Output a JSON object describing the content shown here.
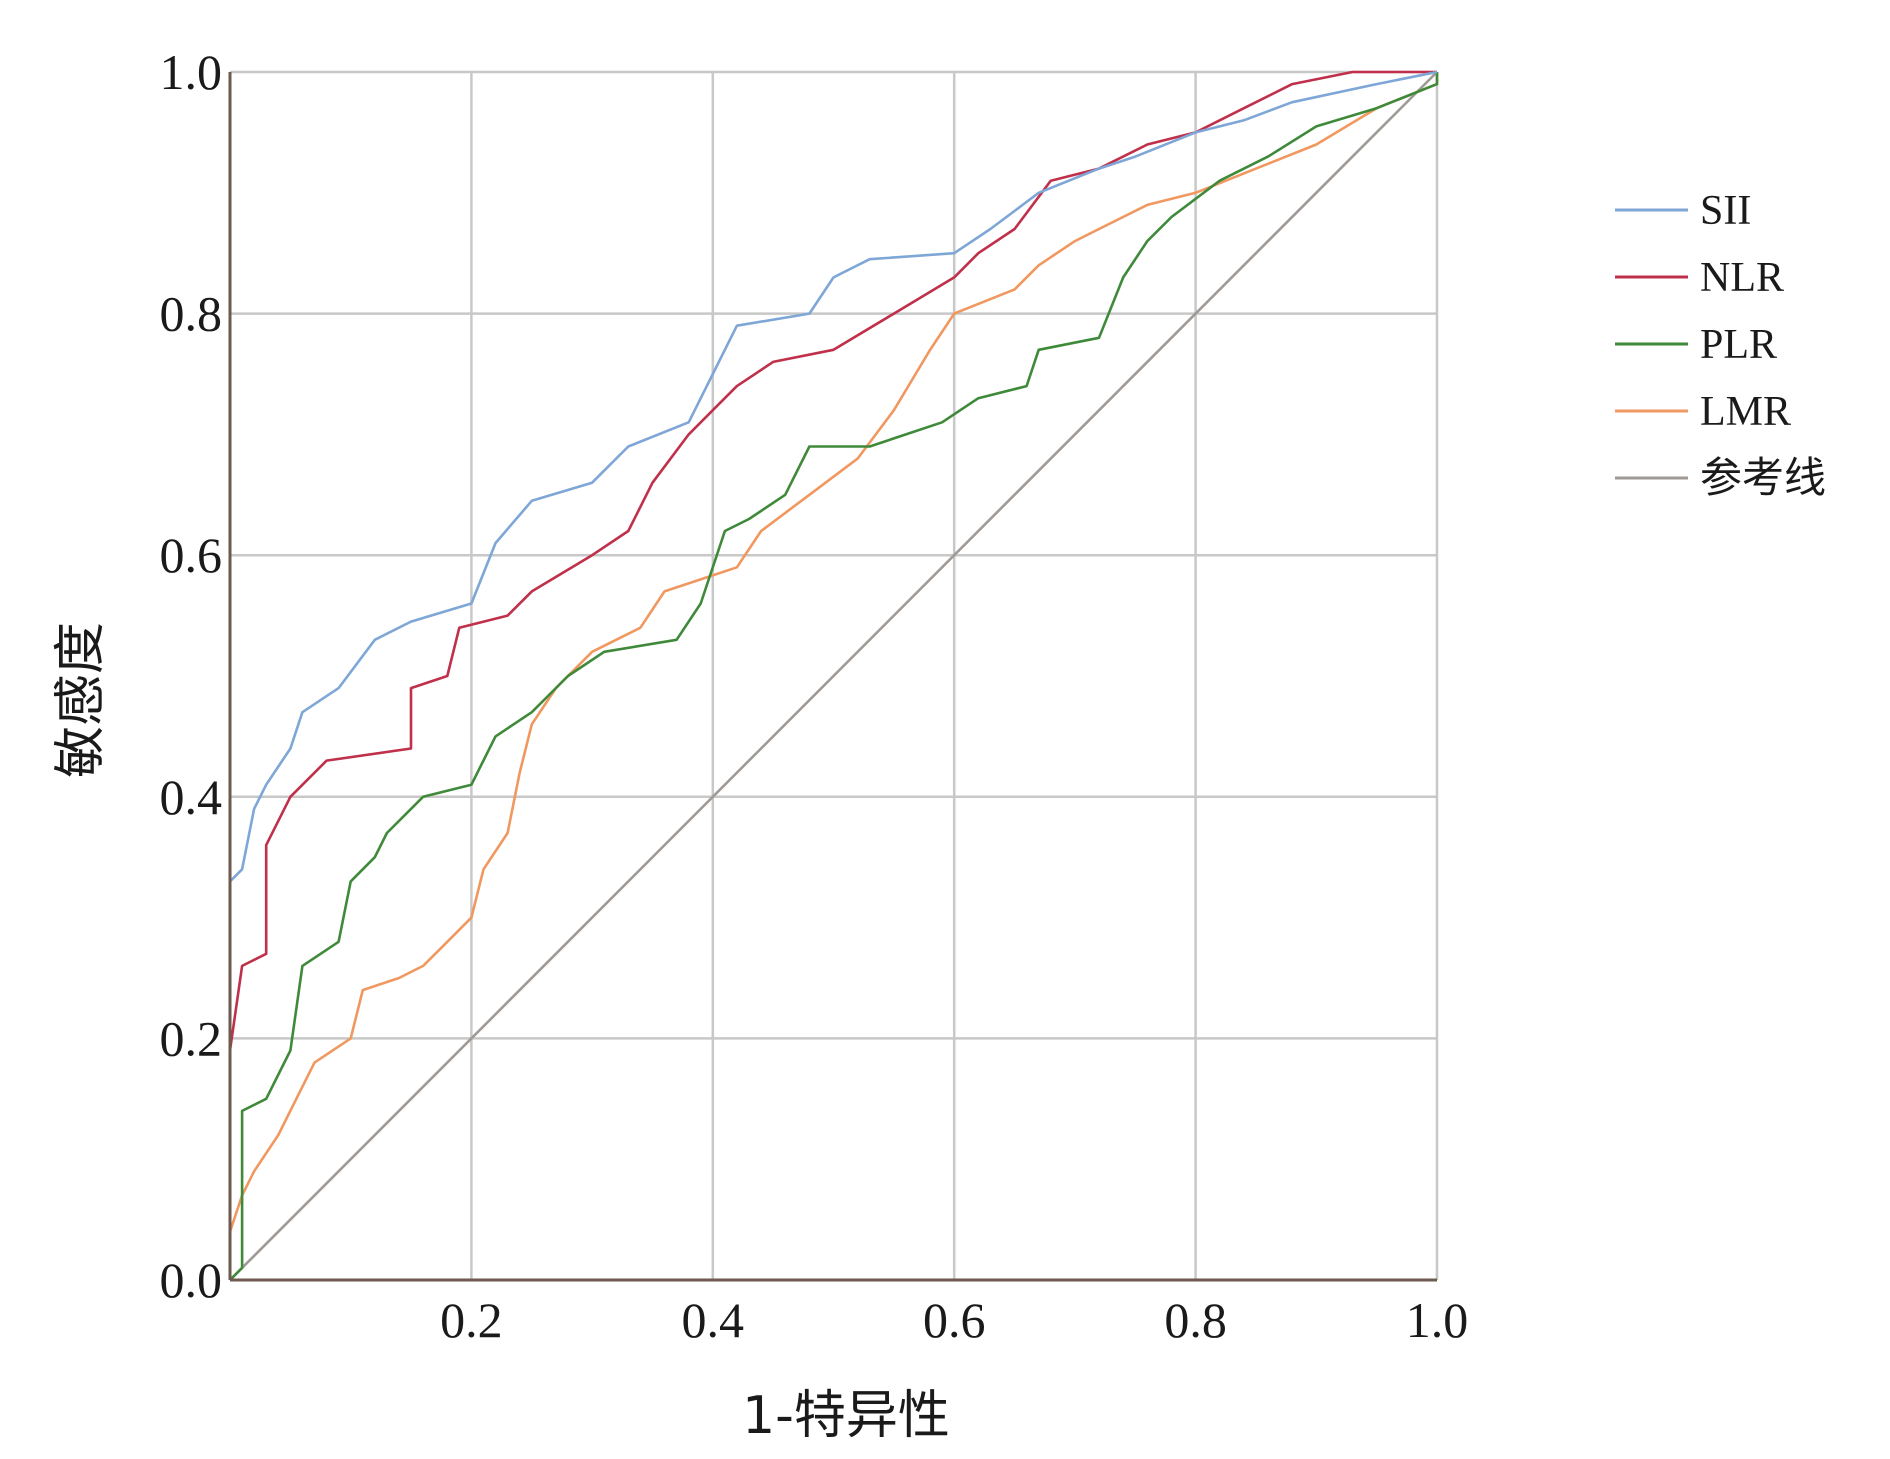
{
  "chart_data": {
    "type": "line",
    "xlabel": "1-特异性",
    "ylabel": "敏感度",
    "xlim": [
      0,
      1
    ],
    "ylim": [
      0,
      1
    ],
    "x_ticks": [
      "0.2",
      "0.4",
      "0.6",
      "0.8",
      "1.0"
    ],
    "y_ticks": [
      "0.0",
      "0.2",
      "0.4",
      "0.6",
      "0.8",
      "1.0"
    ],
    "grid": true,
    "legend_position": "right",
    "series": [
      {
        "name": "SII",
        "color": "#7ea6d6",
        "points": [
          [
            0,
            0
          ],
          [
            0,
            0.33
          ],
          [
            0.01,
            0.34
          ],
          [
            0.02,
            0.39
          ],
          [
            0.03,
            0.41
          ],
          [
            0.05,
            0.44
          ],
          [
            0.06,
            0.47
          ],
          [
            0.09,
            0.49
          ],
          [
            0.12,
            0.53
          ],
          [
            0.15,
            0.545
          ],
          [
            0.2,
            0.56
          ],
          [
            0.22,
            0.61
          ],
          [
            0.25,
            0.645
          ],
          [
            0.3,
            0.66
          ],
          [
            0.33,
            0.69
          ],
          [
            0.38,
            0.71
          ],
          [
            0.4,
            0.75
          ],
          [
            0.42,
            0.79
          ],
          [
            0.48,
            0.8
          ],
          [
            0.5,
            0.83
          ],
          [
            0.53,
            0.845
          ],
          [
            0.6,
            0.85
          ],
          [
            0.63,
            0.87
          ],
          [
            0.67,
            0.9
          ],
          [
            0.72,
            0.92
          ],
          [
            0.75,
            0.93
          ],
          [
            0.8,
            0.95
          ],
          [
            0.84,
            0.96
          ],
          [
            0.88,
            0.975
          ],
          [
            0.95,
            0.99
          ],
          [
            1,
            1
          ]
        ]
      },
      {
        "name": "NLR",
        "color": "#c0304a",
        "points": [
          [
            0,
            0
          ],
          [
            0,
            0.19
          ],
          [
            0.01,
            0.26
          ],
          [
            0.03,
            0.27
          ],
          [
            0.03,
            0.36
          ],
          [
            0.05,
            0.4
          ],
          [
            0.08,
            0.43
          ],
          [
            0.15,
            0.44
          ],
          [
            0.15,
            0.49
          ],
          [
            0.18,
            0.5
          ],
          [
            0.19,
            0.54
          ],
          [
            0.23,
            0.55
          ],
          [
            0.25,
            0.57
          ],
          [
            0.3,
            0.6
          ],
          [
            0.33,
            0.62
          ],
          [
            0.35,
            0.66
          ],
          [
            0.38,
            0.7
          ],
          [
            0.4,
            0.72
          ],
          [
            0.42,
            0.74
          ],
          [
            0.45,
            0.76
          ],
          [
            0.5,
            0.77
          ],
          [
            0.55,
            0.8
          ],
          [
            0.6,
            0.83
          ],
          [
            0.62,
            0.85
          ],
          [
            0.65,
            0.87
          ],
          [
            0.68,
            0.91
          ],
          [
            0.72,
            0.92
          ],
          [
            0.76,
            0.94
          ],
          [
            0.8,
            0.95
          ],
          [
            0.84,
            0.97
          ],
          [
            0.88,
            0.99
          ],
          [
            0.93,
            1
          ],
          [
            1,
            1
          ]
        ]
      },
      {
        "name": "PLR",
        "color": "#3f8a3a",
        "points": [
          [
            0,
            0
          ],
          [
            0.01,
            0.01
          ],
          [
            0.01,
            0.14
          ],
          [
            0.03,
            0.15
          ],
          [
            0.05,
            0.19
          ],
          [
            0.06,
            0.26
          ],
          [
            0.09,
            0.28
          ],
          [
            0.1,
            0.33
          ],
          [
            0.12,
            0.35
          ],
          [
            0.13,
            0.37
          ],
          [
            0.16,
            0.4
          ],
          [
            0.2,
            0.41
          ],
          [
            0.22,
            0.45
          ],
          [
            0.25,
            0.47
          ],
          [
            0.28,
            0.5
          ],
          [
            0.31,
            0.52
          ],
          [
            0.37,
            0.53
          ],
          [
            0.39,
            0.56
          ],
          [
            0.41,
            0.62
          ],
          [
            0.43,
            0.63
          ],
          [
            0.46,
            0.65
          ],
          [
            0.48,
            0.69
          ],
          [
            0.53,
            0.69
          ],
          [
            0.56,
            0.7
          ],
          [
            0.59,
            0.71
          ],
          [
            0.62,
            0.73
          ],
          [
            0.66,
            0.74
          ],
          [
            0.67,
            0.77
          ],
          [
            0.72,
            0.78
          ],
          [
            0.74,
            0.83
          ],
          [
            0.76,
            0.86
          ],
          [
            0.78,
            0.88
          ],
          [
            0.82,
            0.91
          ],
          [
            0.86,
            0.93
          ],
          [
            0.9,
            0.955
          ],
          [
            0.95,
            0.97
          ],
          [
            1,
            0.99
          ],
          [
            1,
            1
          ]
        ]
      },
      {
        "name": "LMR",
        "color": "#f09860",
        "points": [
          [
            0,
            0
          ],
          [
            0,
            0.04
          ],
          [
            0.01,
            0.07
          ],
          [
            0.02,
            0.09
          ],
          [
            0.04,
            0.12
          ],
          [
            0.06,
            0.16
          ],
          [
            0.07,
            0.18
          ],
          [
            0.1,
            0.2
          ],
          [
            0.11,
            0.24
          ],
          [
            0.14,
            0.25
          ],
          [
            0.16,
            0.26
          ],
          [
            0.18,
            0.28
          ],
          [
            0.2,
            0.3
          ],
          [
            0.21,
            0.34
          ],
          [
            0.23,
            0.37
          ],
          [
            0.24,
            0.42
          ],
          [
            0.25,
            0.46
          ],
          [
            0.27,
            0.49
          ],
          [
            0.3,
            0.52
          ],
          [
            0.34,
            0.54
          ],
          [
            0.36,
            0.57
          ],
          [
            0.39,
            0.58
          ],
          [
            0.42,
            0.59
          ],
          [
            0.44,
            0.62
          ],
          [
            0.48,
            0.65
          ],
          [
            0.52,
            0.68
          ],
          [
            0.55,
            0.72
          ],
          [
            0.58,
            0.77
          ],
          [
            0.6,
            0.8
          ],
          [
            0.65,
            0.82
          ],
          [
            0.67,
            0.84
          ],
          [
            0.7,
            0.86
          ],
          [
            0.72,
            0.87
          ],
          [
            0.76,
            0.89
          ],
          [
            0.8,
            0.9
          ],
          [
            0.85,
            0.92
          ],
          [
            0.9,
            0.94
          ],
          [
            0.95,
            0.97
          ],
          [
            1,
            0.99
          ],
          [
            1,
            1
          ]
        ]
      },
      {
        "name": "参考线",
        "color": "#a09a96",
        "points": [
          [
            0,
            0
          ],
          [
            1,
            1
          ]
        ]
      }
    ]
  }
}
